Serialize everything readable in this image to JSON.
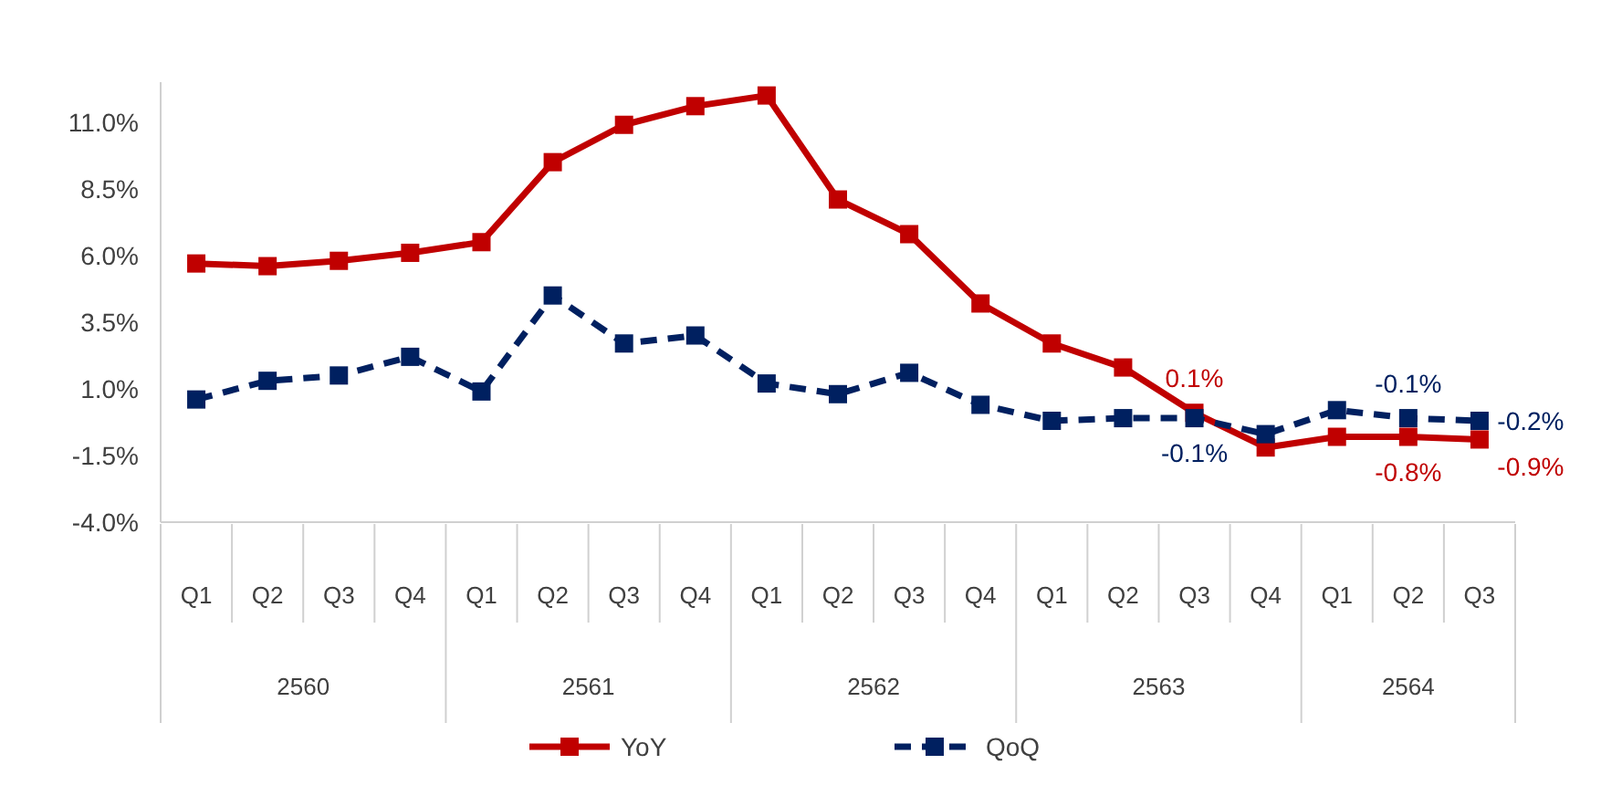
{
  "chart_data": {
    "type": "line",
    "categories": [
      "Q1",
      "Q2",
      "Q3",
      "Q4",
      "Q1",
      "Q2",
      "Q3",
      "Q4",
      "Q1",
      "Q2",
      "Q3",
      "Q4",
      "Q1",
      "Q2",
      "Q3",
      "Q4",
      "Q1",
      "Q2",
      "Q3"
    ],
    "annotations": [
      "2560",
      "2561",
      "2562",
      "2563",
      "2564"
    ],
    "series": [
      {
        "name": "YoY",
        "color": "#c00000",
        "line_style": "solid",
        "values": [
          5.7,
          5.6,
          5.8,
          6.1,
          6.5,
          9.5,
          10.9,
          11.6,
          12.0,
          8.1,
          6.8,
          4.2,
          2.7,
          1.8,
          0.1,
          -1.2,
          -0.8,
          -0.8,
          -0.9
        ],
        "value_labels": [
          null,
          null,
          null,
          null,
          null,
          null,
          null,
          null,
          null,
          null,
          null,
          null,
          null,
          null,
          "0.1%",
          null,
          null,
          "-0.8%",
          "-0.9%"
        ]
      },
      {
        "name": "QoQ",
        "color": "#002060",
        "line_style": "dashed",
        "values": [
          0.6,
          1.3,
          1.5,
          2.2,
          0.9,
          4.5,
          2.7,
          3.0,
          1.2,
          0.8,
          1.6,
          0.4,
          -0.2,
          -0.1,
          -0.1,
          -0.7,
          0.2,
          -0.1,
          -0.2
        ],
        "value_labels": [
          null,
          null,
          null,
          null,
          null,
          null,
          null,
          null,
          null,
          null,
          null,
          null,
          null,
          null,
          "-0.1%",
          null,
          null,
          "-0.1%",
          "-0.2%"
        ]
      }
    ],
    "ylim": [
      -4,
      12.5
    ],
    "yticks": [
      {
        "value": -4,
        "label": "-4.0%"
      },
      {
        "value": -1.5,
        "label": "-1.5%"
      },
      {
        "value": 1,
        "label": "1.0%"
      },
      {
        "value": 3.5,
        "label": "3.5%"
      },
      {
        "value": 6,
        "label": "6.0%"
      },
      {
        "value": 8.5,
        "label": "8.5%"
      },
      {
        "value": 11,
        "label": "11.0%"
      }
    ],
    "marker": "square",
    "legend": "bottom",
    "grid": false
  }
}
